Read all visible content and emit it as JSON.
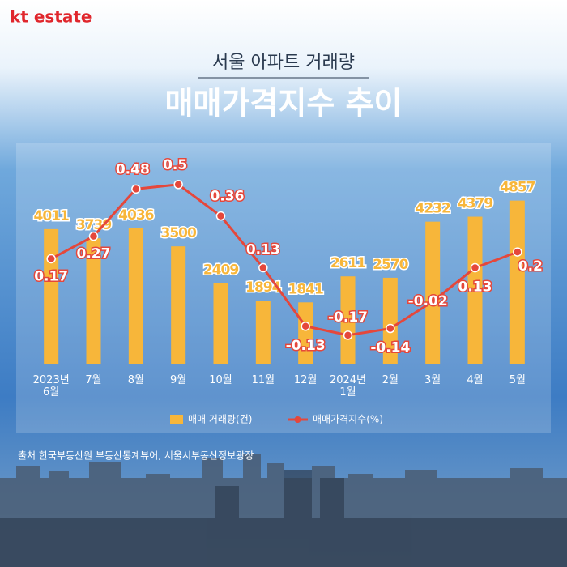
{
  "logo": "kt estate",
  "chart_data": {
    "type": "combo",
    "subtitle": "서울 아파트 거래량",
    "title": "매매가격지수 추이",
    "categories": [
      "2023년\n6월",
      "7월",
      "8월",
      "9월",
      "10월",
      "11월",
      "12월",
      "2024년\n1월",
      "2월",
      "3월",
      "4월",
      "5월"
    ],
    "series": [
      {
        "name": "매매 거래량(건)",
        "type": "bar",
        "color": "#f7b63a",
        "values": [
          4011,
          3739,
          4036,
          3500,
          2409,
          1894,
          1841,
          2611,
          2570,
          4232,
          4379,
          4857
        ]
      },
      {
        "name": "매매가격지수(%)",
        "type": "line",
        "axis": "y2",
        "color": "#e5473b",
        "values": [
          0.17,
          0.27,
          0.48,
          0.5,
          0.36,
          0.13,
          -0.13,
          -0.17,
          -0.14,
          -0.02,
          0.13,
          0.2
        ]
      }
    ],
    "ylim": [
      0,
      6000
    ],
    "y2lim": [
      -0.3,
      0.6
    ],
    "source": "출처 한국부동산원 부동산통계뷰어, 서울시부동산정보광장"
  }
}
